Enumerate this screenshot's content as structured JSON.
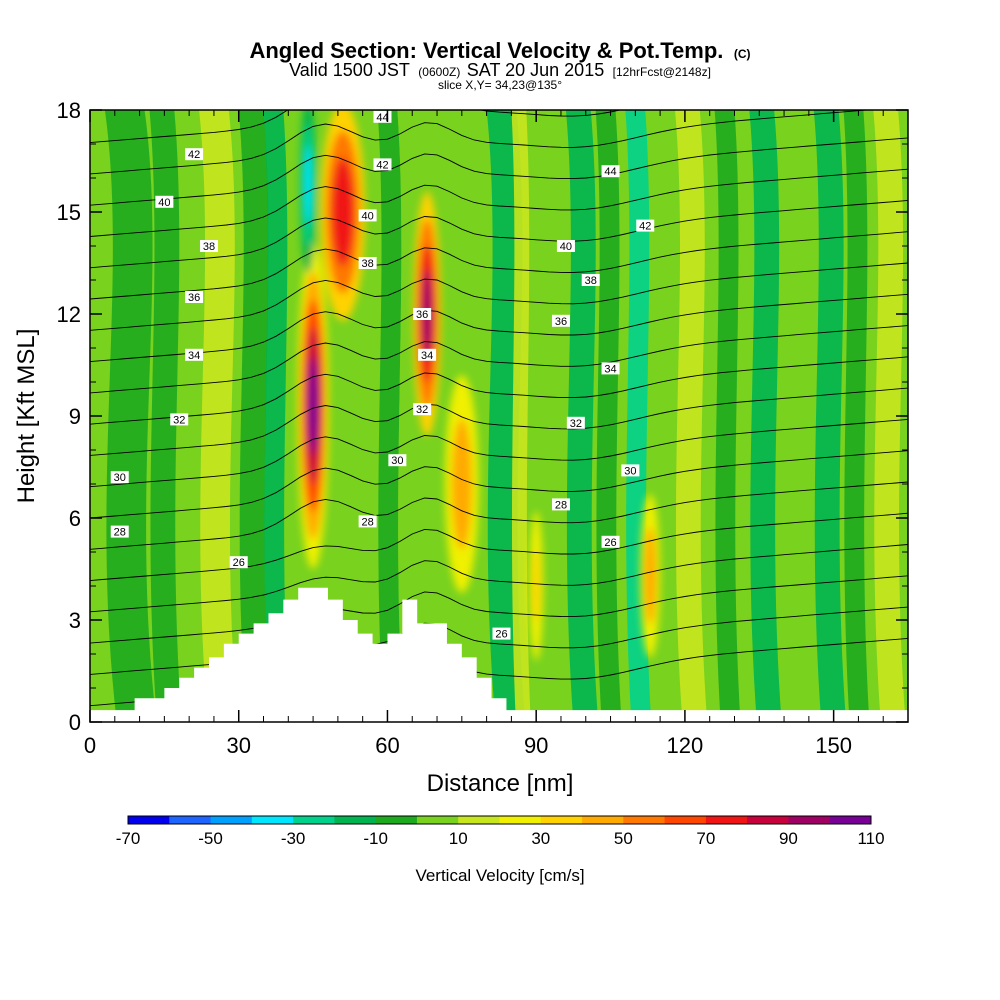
{
  "title": {
    "main": "Angled Section: Vertical Velocity & Pot.Temp.",
    "main_suffix": "(C)",
    "valid_prefix": "Valid 1500 JST",
    "valid_zulu": "(0600Z)",
    "valid_date": "SAT 20 Jun 2015",
    "forecast": "[12hrFcst@2148z]",
    "slice": "slice X,Y= 34,23@135°"
  },
  "chart_data": {
    "type": "heatmap",
    "xlabel": "Distance [nm]",
    "ylabel": "Height [Kft MSL]",
    "xlim": [
      0,
      165
    ],
    "ylim": [
      0,
      18
    ],
    "xticks": [
      0,
      30,
      60,
      90,
      120,
      150
    ],
    "yticks": [
      0,
      3,
      6,
      9,
      12,
      15,
      18
    ],
    "colorbar": {
      "title": "Vertical Velocity [cm/s]",
      "ticks": [
        "-70",
        "-50",
        "-30",
        "-10",
        "10",
        "30",
        "50",
        "70",
        "90",
        "110"
      ],
      "levels": [
        -70,
        -60,
        -50,
        -40,
        -30,
        -20,
        -10,
        0,
        10,
        20,
        30,
        40,
        50,
        60,
        70,
        80,
        90,
        100,
        110
      ],
      "colors": [
        "#0000ee",
        "#1e64ff",
        "#00a0ff",
        "#00e6ff",
        "#00d28c",
        "#00b450",
        "#1eaa1e",
        "#78d21e",
        "#c8e61e",
        "#f0f000",
        "#ffd200",
        "#ffaa00",
        "#ff7800",
        "#ff4600",
        "#f01414",
        "#c8003c",
        "#a00064",
        "#780096"
      ]
    },
    "velocity_features": [
      {
        "name": "updraft-core-left",
        "x": 45,
        "y": 9.3,
        "max_cms": 100
      },
      {
        "name": "updraft-upper-left",
        "x": 51,
        "y": 15,
        "max_cms": 70
      },
      {
        "name": "updraft-core-right",
        "x": 68,
        "y": 12,
        "max_cms": 90
      },
      {
        "name": "downdraft-upper",
        "x": 44,
        "y": 15.8,
        "min_cms": -40
      },
      {
        "name": "updraft-lower-right",
        "x": 75,
        "y": 7,
        "max_cms": 40
      },
      {
        "name": "updraft-column-90",
        "x": 90,
        "y": 4,
        "max_cms": 30
      },
      {
        "name": "updraft-column-113",
        "x": 113,
        "y": 4.3,
        "max_cms": 40
      }
    ],
    "terrain": {
      "x": [
        0,
        9,
        9,
        15,
        15,
        18,
        18,
        21,
        21,
        24,
        24,
        27,
        27,
        30,
        30,
        33,
        33,
        36,
        36,
        39,
        39,
        42,
        42,
        48,
        48,
        51,
        51,
        54,
        54,
        57,
        57,
        60,
        60,
        63,
        63,
        66,
        66,
        72,
        72,
        75,
        75,
        78,
        78,
        81,
        81,
        84,
        84,
        165
      ],
      "y": [
        0.35,
        0.35,
        0.7,
        0.7,
        1.0,
        1.0,
        1.3,
        1.3,
        1.6,
        1.6,
        1.9,
        1.9,
        2.3,
        2.3,
        2.6,
        2.6,
        2.9,
        2.9,
        3.2,
        3.2,
        3.6,
        3.6,
        3.95,
        3.95,
        3.6,
        3.6,
        3.0,
        3.0,
        2.6,
        2.6,
        2.3,
        2.3,
        2.6,
        2.6,
        3.6,
        3.6,
        2.9,
        2.9,
        2.3,
        2.3,
        1.9,
        1.9,
        1.3,
        1.3,
        0.7,
        0.7,
        0.35,
        0.35
      ]
    },
    "theta_contours": {
      "levels": [
        26,
        27,
        28,
        29,
        30,
        31,
        32,
        33,
        34,
        35,
        36,
        37,
        38,
        39,
        40,
        41,
        42,
        43,
        44
      ],
      "labels": [
        {
          "text": "42",
          "x": 21,
          "y": 16.7
        },
        {
          "text": "40",
          "x": 15,
          "y": 15.3
        },
        {
          "text": "38",
          "x": 24,
          "y": 14.0
        },
        {
          "text": "36",
          "x": 21,
          "y": 12.5
        },
        {
          "text": "34",
          "x": 21,
          "y": 10.8
        },
        {
          "text": "32",
          "x": 18,
          "y": 8.9
        },
        {
          "text": "30",
          "x": 6,
          "y": 7.2
        },
        {
          "text": "28",
          "x": 6,
          "y": 5.6
        },
        {
          "text": "26",
          "x": 30,
          "y": 4.7
        },
        {
          "text": "44",
          "x": 59,
          "y": 17.8
        },
        {
          "text": "42",
          "x": 59,
          "y": 16.4
        },
        {
          "text": "40",
          "x": 56,
          "y": 14.9
        },
        {
          "text": "38",
          "x": 56,
          "y": 13.5
        },
        {
          "text": "36",
          "x": 67,
          "y": 12.0
        },
        {
          "text": "34",
          "x": 68,
          "y": 10.8
        },
        {
          "text": "32",
          "x": 67,
          "y": 9.2
        },
        {
          "text": "30",
          "x": 62,
          "y": 7.7
        },
        {
          "text": "28",
          "x": 56,
          "y": 5.9
        },
        {
          "text": "26",
          "x": 83,
          "y": 2.6
        },
        {
          "text": "44",
          "x": 105,
          "y": 16.2
        },
        {
          "text": "42",
          "x": 112,
          "y": 14.6
        },
        {
          "text": "40",
          "x": 96,
          "y": 14.0
        },
        {
          "text": "38",
          "x": 101,
          "y": 13.0
        },
        {
          "text": "36",
          "x": 95,
          "y": 11.8
        },
        {
          "text": "34",
          "x": 105,
          "y": 10.4
        },
        {
          "text": "32",
          "x": 98,
          "y": 8.8
        },
        {
          "text": "30",
          "x": 109,
          "y": 7.4
        },
        {
          "text": "28",
          "x": 95,
          "y": 6.4
        },
        {
          "text": "26",
          "x": 105,
          "y": 5.3
        }
      ]
    }
  }
}
